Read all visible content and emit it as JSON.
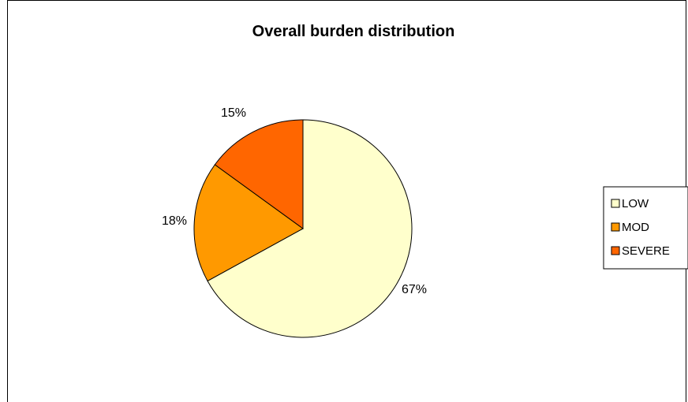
{
  "chart_data": {
    "type": "pie",
    "title": "Overall burden distribution",
    "categories": [
      "LOW",
      "MOD",
      "SEVERE"
    ],
    "values": [
      67,
      18,
      15
    ],
    "labels": [
      "67%",
      "18%",
      "15%"
    ],
    "colors": [
      "#FFFFCC",
      "#FF9900",
      "#FF6600"
    ],
    "legend_position": "right"
  }
}
